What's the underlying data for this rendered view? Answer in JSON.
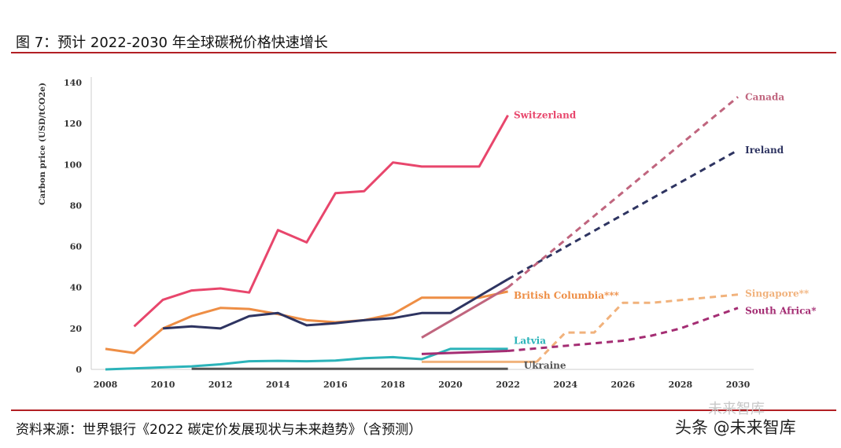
{
  "figure_title": "图 7：预计 2022-2030 年全球碳税价格快速增长",
  "source_note": "资料来源：世界银行《2022 碳定价发展现状与未来趋势》（含预测）",
  "watermark": "头条 @未来智库",
  "watermark_faint": "未来智库",
  "colors": {
    "rule": "#b21f24",
    "Switzerland": "#e8466c",
    "Canada": "#c0657e",
    "Ireland": "#2e3461",
    "British Columbia": "#ee8e45",
    "Singapore": "#f1b27c",
    "South Africa": "#a42d73",
    "Latvia": "#2bb3b9",
    "Ukraine": "#555555"
  },
  "chart_data": {
    "type": "line",
    "xlabel": "",
    "ylabel": "Carbon price (USD/tCO2e)",
    "xlim": [
      2007.7,
      2030.3
    ],
    "ylim": [
      0,
      140
    ],
    "xticks": [
      "2008",
      "2010",
      "2012",
      "2014",
      "2016",
      "2018",
      "2020",
      "2022",
      "2024",
      "2026",
      "2028",
      "2030"
    ],
    "yticks": [
      "0",
      "20",
      "40",
      "60",
      "80",
      "100",
      "120",
      "140"
    ],
    "grid": false,
    "legend": "inline labels at line ends",
    "series": [
      {
        "name": "Switzerland",
        "label_text": "Switzerland",
        "style": "solid",
        "x": [
          2009,
          2010,
          2011,
          2012,
          2013,
          2014,
          2015,
          2016,
          2017,
          2018,
          2019,
          2020,
          2021,
          2022
        ],
        "y": [
          21,
          34,
          38.5,
          39.5,
          37.5,
          68,
          62,
          86,
          87,
          101,
          99,
          99,
          99,
          124
        ]
      },
      {
        "name": "British Columbia",
        "label_text": "British Columbia***",
        "style": "solid",
        "x": [
          2008,
          2009,
          2010,
          2011,
          2012,
          2013,
          2014,
          2015,
          2016,
          2017,
          2018,
          2019,
          2020,
          2021,
          2022
        ],
        "y": [
          10,
          8,
          20,
          26,
          30,
          29.5,
          27,
          24,
          23,
          24,
          27,
          35,
          35,
          35,
          38
        ]
      },
      {
        "name": "Ireland",
        "label_text": "Ireland",
        "style": "solid",
        "x": [
          2010,
          2011,
          2012,
          2013,
          2014,
          2015,
          2016,
          2017,
          2018,
          2019,
          2020,
          2022
        ],
        "y": [
          20,
          21,
          20,
          26,
          27.5,
          21.5,
          22.5,
          24,
          25,
          27.5,
          27.5,
          44
        ]
      },
      {
        "name": "Ireland projection",
        "label_text": "",
        "style": "dashed",
        "x": [
          2022,
          2030
        ],
        "y": [
          44,
          107
        ]
      },
      {
        "name": "Canada",
        "label_text": "",
        "style": "solid",
        "x": [
          2019,
          2022
        ],
        "y": [
          15.5,
          40
        ]
      },
      {
        "name": "Canada",
        "label_text": "Canada",
        "style": "dashed",
        "x": [
          2022,
          2030
        ],
        "y": [
          40,
          133
        ]
      },
      {
        "name": "Latvia",
        "label_text": "Latvia",
        "style": "solid",
        "x": [
          2008,
          2010,
          2011,
          2012,
          2013,
          2014,
          2015,
          2016,
          2017,
          2018,
          2019,
          2020,
          2021,
          2022
        ],
        "y": [
          0,
          1,
          1.5,
          2.5,
          4,
          4.2,
          4,
          4.3,
          5.5,
          6,
          5,
          10,
          10,
          10
        ]
      },
      {
        "name": "Ukraine",
        "label_text": "Ukraine",
        "style": "solid",
        "x": [
          2011,
          2022
        ],
        "y": [
          0.3,
          0.3
        ]
      },
      {
        "name": "Singapore",
        "label_text": "Singapore**",
        "style": "solid",
        "x": [
          2019,
          2023
        ],
        "y": [
          3.7,
          3.7
        ]
      },
      {
        "name": "Singapore",
        "label_text": "",
        "style": "dashed",
        "x": [
          2023,
          2024,
          2025,
          2026,
          2027,
          2030
        ],
        "y": [
          3.7,
          18,
          18,
          32.5,
          32.5,
          36.5
        ]
      },
      {
        "name": "South Africa",
        "label_text": "",
        "style": "solid",
        "x": [
          2019,
          2022
        ],
        "y": [
          7.5,
          9
        ]
      },
      {
        "name": "South Africa",
        "label_text": "South Africa*",
        "style": "dashed",
        "x": [
          2022,
          2024,
          2026,
          2027,
          2028,
          2029,
          2030
        ],
        "y": [
          9,
          11.5,
          14,
          16.5,
          20,
          25,
          30
        ]
      }
    ],
    "labels": [
      {
        "series": "Switzerland",
        "text": "Switzerland",
        "x": 2022.2,
        "y": 124
      },
      {
        "series": "Canada",
        "text": "Canada",
        "x": 2030.25,
        "y": 133
      },
      {
        "series": "Ireland",
        "text": "Ireland",
        "x": 2030.25,
        "y": 107
      },
      {
        "series": "British Columbia",
        "text": "British Columbia***",
        "x": 2022.2,
        "y": 36
      },
      {
        "series": "Singapore",
        "text": "Singapore**",
        "x": 2030.25,
        "y": 37
      },
      {
        "series": "South Africa",
        "text": "South Africa*",
        "x": 2030.25,
        "y": 28.5
      },
      {
        "series": "Latvia",
        "text": "Latvia",
        "x": 2022.2,
        "y": 14
      },
      {
        "series": "Ukraine",
        "text": "Ukraine",
        "x": 2022.55,
        "y": 2
      }
    ]
  }
}
